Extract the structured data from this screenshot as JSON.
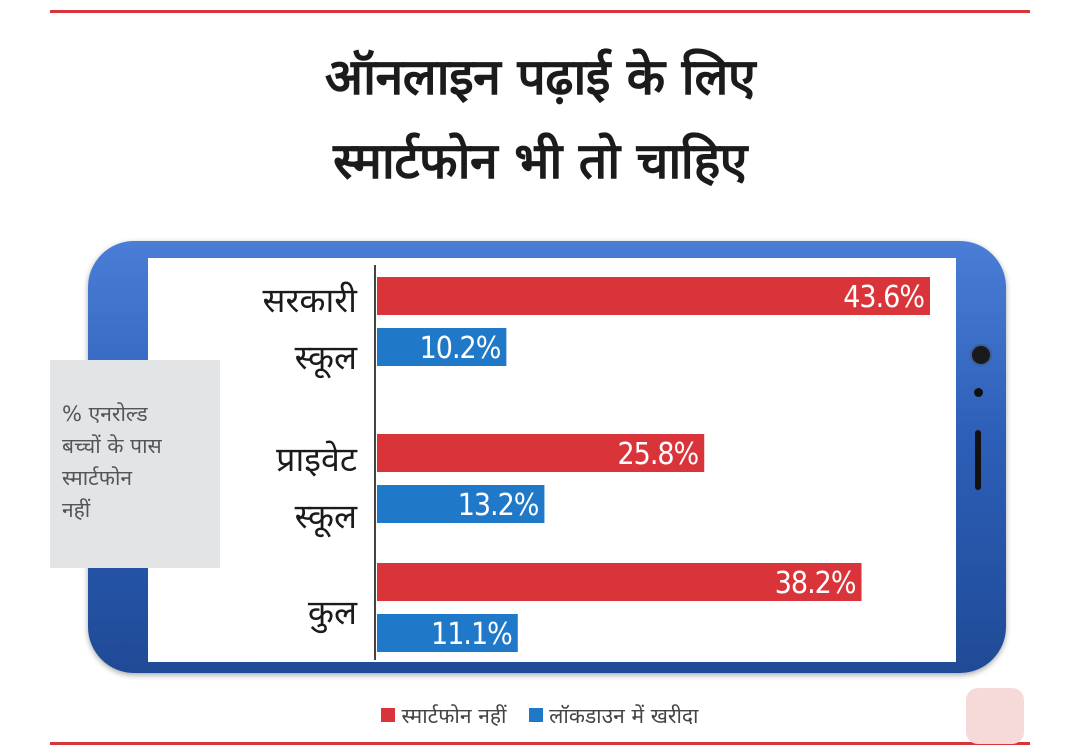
{
  "title": {
    "line1": "ऑनलाइन पढ़ाई के लिए",
    "line2": "स्मार्टफोन भी तो चाहिए"
  },
  "note": {
    "lines": [
      "% एनरोल्ड",
      "बच्चों के पास",
      "स्मार्टफोन",
      "नहीं"
    ]
  },
  "colors": {
    "no_smartphone": "#d9343a",
    "bought_in_lockdown": "#1f79c8",
    "phone_body": "#2d5fb8"
  },
  "legend": {
    "no_smartphone": "स्मार्टफोन नहीं",
    "bought_in_lockdown": "लॉकडाउन में खरीदा"
  },
  "chart_data": {
    "type": "bar",
    "orientation": "horizontal",
    "categories": [
      [
        "सरकारी",
        "स्कूल"
      ],
      [
        "प्राइवेट",
        "स्कूल"
      ],
      [
        "कुल"
      ]
    ],
    "series": [
      {
        "name": "स्मार्टफोन नहीं",
        "color": "#d9343a",
        "values": [
          43.6,
          25.8,
          38.2
        ],
        "labels": [
          "43.6%",
          "25.8%",
          "38.2%"
        ]
      },
      {
        "name": "लॉकडाउन में खरीदा",
        "color": "#1f79c8",
        "values": [
          10.2,
          13.2,
          11.1
        ],
        "labels": [
          "10.2%",
          "13.2%",
          "11.1%"
        ]
      }
    ],
    "xlim": [
      0,
      45
    ],
    "grid": false,
    "legend_position": "bottom"
  },
  "icons": {
    "corner": "hand-icon"
  }
}
